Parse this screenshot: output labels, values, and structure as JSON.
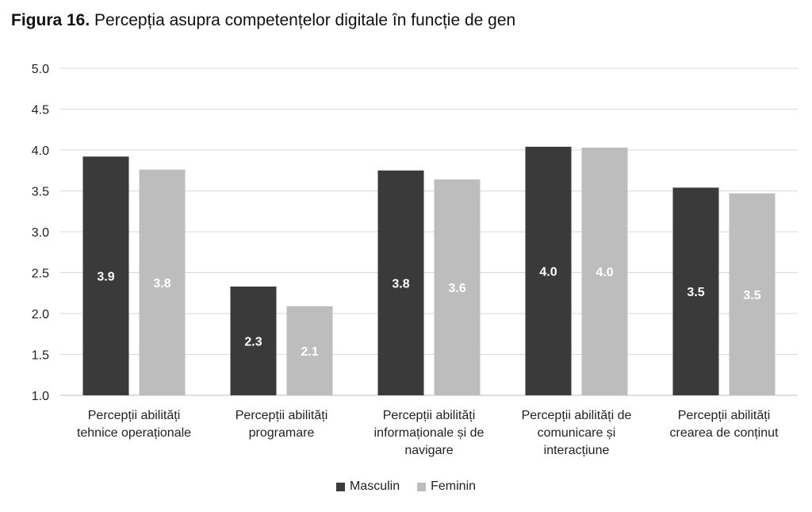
{
  "title": {
    "bold": "Figura 16.",
    "text": "Percepția asupra competențelor digitale în funcție de gen"
  },
  "chart_data": {
    "type": "bar",
    "categories": [
      [
        "Percepții abilități",
        "tehnice operaționale"
      ],
      [
        "Percepții abilități",
        "programare"
      ],
      [
        "Percepții abilități",
        "informaționale și de",
        "navigare"
      ],
      [
        "Percepții abilități de",
        "comunicare și",
        "interacțiune"
      ],
      [
        "Percepții abilități",
        "crearea de conținut"
      ]
    ],
    "series": [
      {
        "name": "Masculin",
        "color": "#3a3a3a",
        "label_color": "#ffffff",
        "values": [
          3.92,
          2.33,
          3.75,
          4.04,
          3.54
        ],
        "labels": [
          "3.9",
          "2.3",
          "3.8",
          "4.0",
          "3.5"
        ]
      },
      {
        "name": "Feminin",
        "color": "#bdbdbd",
        "label_color": "#ffffff",
        "values": [
          3.76,
          2.09,
          3.64,
          4.03,
          3.47
        ],
        "labels": [
          "3.8",
          "2.1",
          "3.6",
          "4.0",
          "3.5"
        ]
      }
    ],
    "ylim": [
      1.0,
      5.0
    ],
    "yticks": [
      "1.0",
      "1.5",
      "2.0",
      "2.5",
      "3.0",
      "3.5",
      "4.0",
      "4.5",
      "5.0"
    ],
    "xlabel": "",
    "ylabel": "",
    "grid": true,
    "legend": "bottom-center"
  }
}
